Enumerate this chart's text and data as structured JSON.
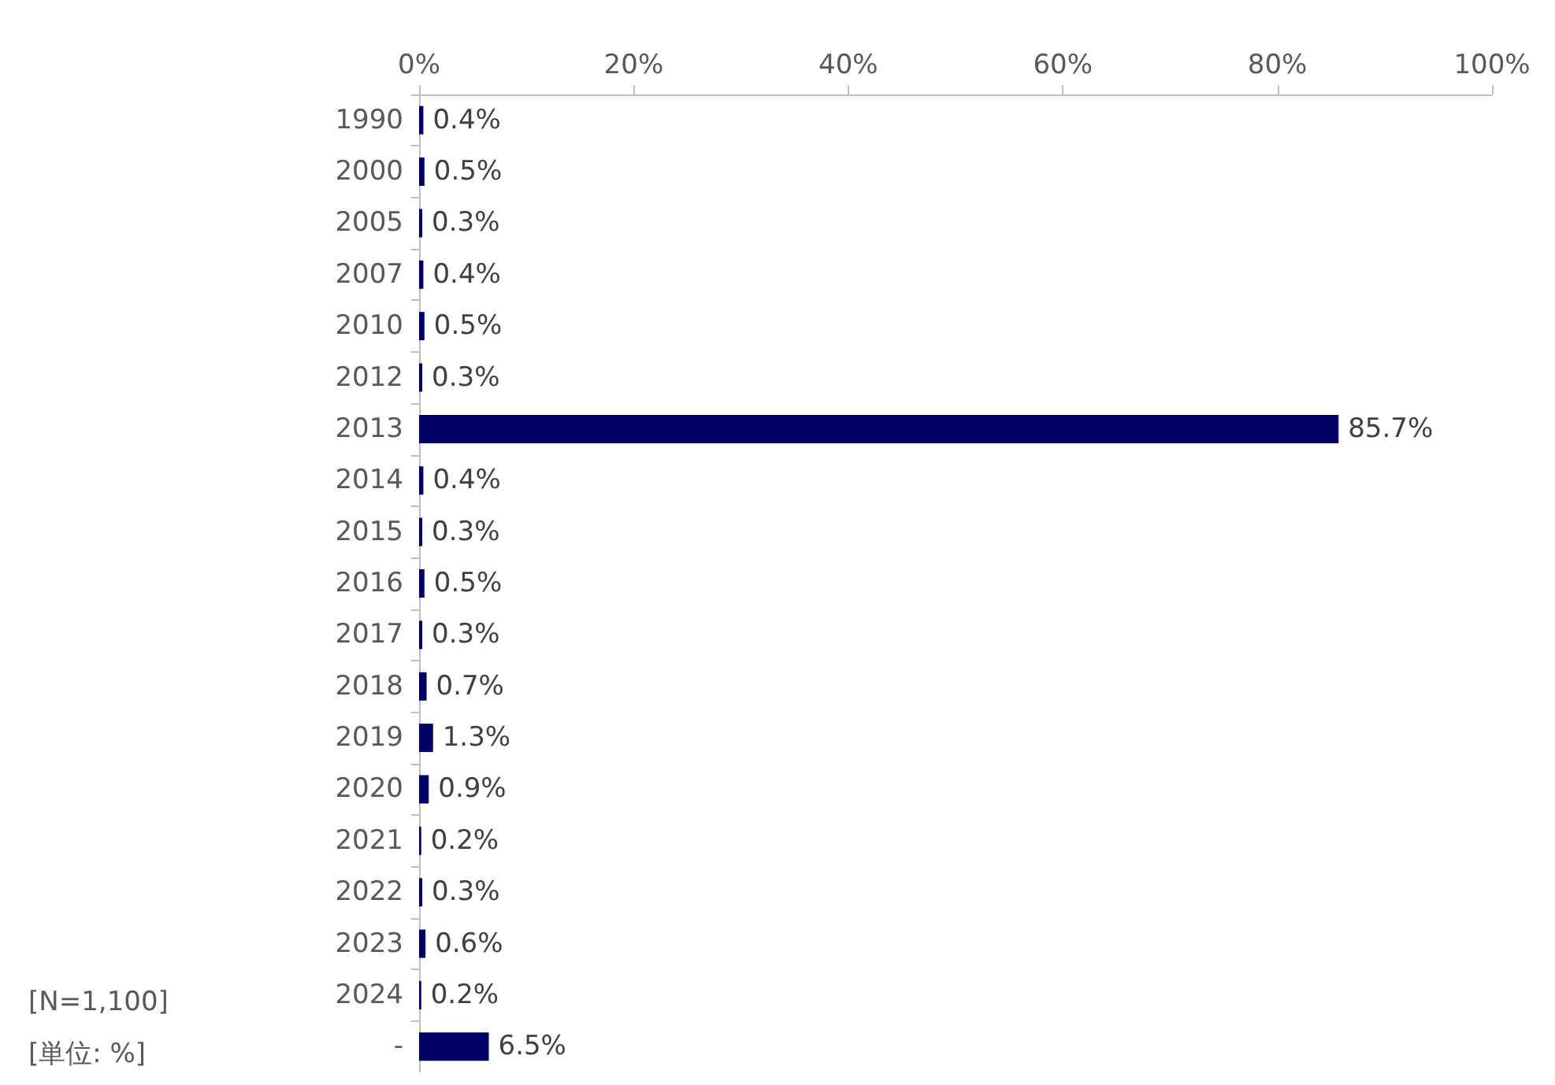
{
  "chart_data": {
    "type": "bar",
    "orientation": "horizontal",
    "categories": [
      "1990",
      "2000",
      "2005",
      "2007",
      "2010",
      "2012",
      "2013",
      "2014",
      "2015",
      "2016",
      "2017",
      "2018",
      "2019",
      "2020",
      "2021",
      "2022",
      "2023",
      "2024",
      "-"
    ],
    "values": [
      0.4,
      0.5,
      0.3,
      0.4,
      0.5,
      0.3,
      85.7,
      0.4,
      0.3,
      0.5,
      0.3,
      0.7,
      1.3,
      0.9,
      0.2,
      0.3,
      0.6,
      0.2,
      6.5
    ],
    "value_labels": [
      "0.4%",
      "0.5%",
      "0.3%",
      "0.4%",
      "0.5%",
      "0.3%",
      "85.7%",
      "0.4%",
      "0.3%",
      "0.5%",
      "0.3%",
      "0.7%",
      "1.3%",
      "0.9%",
      "0.2%",
      "0.3%",
      "0.6%",
      "0.2%",
      "6.5%"
    ],
    "color": "#000066",
    "xlim": [
      0,
      100
    ],
    "xticks": [
      {
        "value": 0,
        "label": "0%"
      },
      {
        "value": 20,
        "label": "20%"
      },
      {
        "value": 40,
        "label": "40%"
      },
      {
        "value": 60,
        "label": "60%"
      },
      {
        "value": 80,
        "label": "80%"
      },
      {
        "value": 100,
        "label": "100%"
      }
    ],
    "grid": false,
    "annotations": [
      "[N=1,100]",
      "[単位: %]"
    ]
  }
}
